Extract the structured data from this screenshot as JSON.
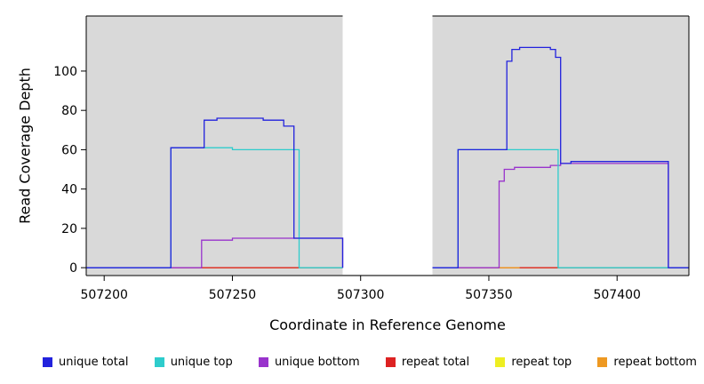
{
  "chart_data": {
    "type": "line",
    "step": true,
    "title": "",
    "xlabel": "Coordinate in Reference Genome",
    "ylabel": "Read Coverage Depth",
    "xlim": [
      507193,
      507428
    ],
    "ylim": [
      0,
      112
    ],
    "ylim_draw": [
      -4,
      128
    ],
    "x_ticks": [
      507200,
      507250,
      507300,
      507350,
      507400
    ],
    "y_ticks": [
      0,
      20,
      40,
      60,
      80,
      100
    ],
    "background": "#d9d9d9",
    "grid": false,
    "gap_region": {
      "x0": 507293,
      "x1": 507328,
      "color": "#ffffff"
    },
    "series": [
      {
        "name": "repeat top",
        "color": "#eeee22",
        "segments": [
          [
            [
              507193,
              0
            ],
            [
              507293,
              0
            ]
          ],
          [
            [
              507328,
              0
            ],
            [
              507428,
              0
            ]
          ]
        ]
      },
      {
        "name": "repeat total",
        "color": "#dd2222",
        "segments": [
          [
            [
              507193,
              0
            ],
            [
              507293,
              0
            ]
          ],
          [
            [
              507328,
              0
            ],
            [
              507428,
              0
            ]
          ]
        ]
      },
      {
        "name": "repeat bottom",
        "color": "#ee9922",
        "segments": [
          [
            [
              507328,
              0
            ],
            [
              507362,
              0
            ]
          ]
        ]
      },
      {
        "name": "unique bottom",
        "color": "#9933cc",
        "segments": [
          [
            [
              507193,
              0
            ],
            [
              507238,
              14
            ],
            [
              507250,
              15
            ],
            [
              507293,
              0
            ]
          ],
          [
            [
              507328,
              0
            ],
            [
              507354,
              44
            ],
            [
              507356,
              50
            ],
            [
              507360,
              51
            ],
            [
              507374,
              52
            ],
            [
              507378,
              53
            ],
            [
              507420,
              0
            ],
            [
              507428,
              0
            ]
          ]
        ]
      },
      {
        "name": "unique top",
        "color": "#2ecccc",
        "segments": [
          [
            [
              507193,
              0
            ],
            [
              507226,
              61
            ],
            [
              507250,
              60
            ],
            [
              507276,
              0
            ],
            [
              507293,
              0
            ]
          ],
          [
            [
              507328,
              0
            ],
            [
              507338,
              60
            ],
            [
              507377,
              0
            ],
            [
              507428,
              0
            ]
          ]
        ]
      },
      {
        "name": "unique total",
        "color": "#2222dd",
        "segments": [
          [
            [
              507193,
              0
            ],
            [
              507226,
              61
            ],
            [
              507239,
              75
            ],
            [
              507244,
              76
            ],
            [
              507262,
              75
            ],
            [
              507270,
              72
            ],
            [
              507274,
              15
            ],
            [
              507293,
              0
            ]
          ],
          [
            [
              507328,
              0
            ],
            [
              507338,
              60
            ],
            [
              507357,
              105
            ],
            [
              507359,
              111
            ],
            [
              507362,
              112
            ],
            [
              507374,
              111
            ],
            [
              507376,
              107
            ],
            [
              507378,
              53
            ],
            [
              507382,
              54
            ],
            [
              507420,
              0
            ],
            [
              507428,
              0
            ]
          ]
        ]
      }
    ],
    "legend_position": "bottom"
  },
  "legend": [
    {
      "label": "unique total",
      "color": "#2222dd"
    },
    {
      "label": "unique top",
      "color": "#2ecccc"
    },
    {
      "label": "unique bottom",
      "color": "#9933cc"
    },
    {
      "label": "repeat total",
      "color": "#dd2222"
    },
    {
      "label": "repeat top",
      "color": "#eeee22"
    },
    {
      "label": "repeat bottom",
      "color": "#ee9922"
    }
  ]
}
